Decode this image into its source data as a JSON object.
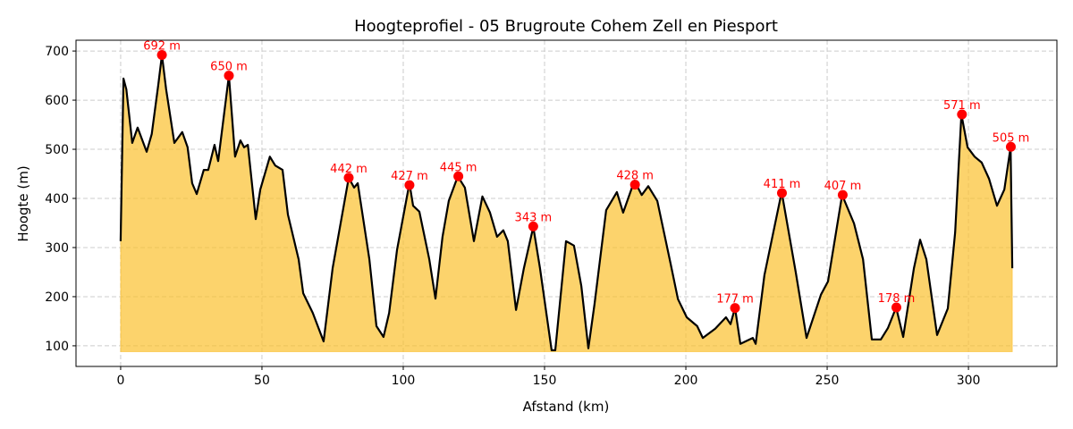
{
  "chart_data": {
    "type": "area",
    "title": "Hoogteprofiel - 05 Brugroute Cohem Zell en Piesport",
    "xlabel": "Afstand (km)",
    "ylabel": "Hoogte (m)",
    "xlim": [
      -15.8,
      331.3
    ],
    "ylim": [
      58,
      722
    ],
    "fill_baseline": 88,
    "xticks": [
      0,
      50,
      100,
      150,
      200,
      250,
      300
    ],
    "yticks": [
      100,
      200,
      300,
      400,
      500,
      600,
      700
    ],
    "grid": true,
    "colors": {
      "fill": "#fbc02d",
      "line": "#000000",
      "marker": "#ff0000",
      "label": "#ff0000",
      "grid": "#cccccc"
    },
    "x": [
      0,
      1,
      2,
      4.1,
      6,
      9.2,
      11,
      13.3,
      14.6,
      16.1,
      19,
      21.8,
      23.7,
      25.3,
      26.9,
      29.4,
      31,
      33.2,
      34.5,
      38.3,
      40.5,
      42.4,
      43.7,
      45,
      47.8,
      49.4,
      52.8,
      54.7,
      57.3,
      59.2,
      63,
      64.6,
      68,
      71.8,
      75,
      80.7,
      82.6,
      83.9,
      88,
      90.5,
      93,
      95,
      97.8,
      102.2,
      103.5,
      105.7,
      109.2,
      111.4,
      113.9,
      116.1,
      119.3,
      121.8,
      125,
      128,
      130.7,
      133.2,
      135.4,
      137,
      139.9,
      142.7,
      146,
      148.4,
      152.5,
      153.8,
      157.6,
      160.4,
      163,
      165.5,
      167.7,
      171.8,
      175.6,
      177.8,
      181.8,
      184.4,
      186.7,
      189.9,
      194.6,
      197.2,
      200.3,
      204,
      206,
      210.4,
      214.2,
      215.8,
      217.4,
      219.3,
      223.7,
      224.7,
      227.8,
      233.9,
      238.9,
      242.7,
      247.8,
      250.3,
      255.3,
      259.5,
      262.7,
      265.8,
      269,
      271.5,
      274.4,
      276.9,
      280.7,
      282.9,
      285.1,
      288.9,
      292.7,
      295.3,
      297.5,
      299.7,
      302.2,
      304.7,
      307.3,
      310.1,
      312.7,
      314.9,
      315.5
    ],
    "y": [
      313,
      644,
      622,
      513,
      544,
      495,
      531,
      631,
      692,
      622,
      513,
      535,
      504,
      431,
      409,
      458,
      458,
      509,
      476,
      650,
      485,
      518,
      504,
      509,
      358,
      418,
      485,
      467,
      458,
      367,
      276,
      207,
      167,
      109,
      258,
      442,
      422,
      431,
      276,
      140,
      118,
      167,
      295,
      431,
      385,
      373,
      276,
      196,
      322,
      395,
      445,
      422,
      313,
      404,
      371,
      322,
      335,
      313,
      173,
      258,
      342,
      258,
      91,
      91,
      313,
      304,
      222,
      95,
      185,
      376,
      413,
      371,
      436,
      407,
      425,
      395,
      267,
      195,
      158,
      140,
      116,
      135,
      158,
      144,
      177,
      104,
      116,
      104,
      244,
      413,
      249,
      116,
      204,
      231,
      407,
      349,
      276,
      113,
      113,
      136,
      178,
      118,
      258,
      316,
      276,
      122,
      176,
      331,
      571,
      504,
      485,
      473,
      440,
      385,
      418,
      504,
      258
    ],
    "peaks": [
      {
        "x": 14.6,
        "y": 692,
        "label": "692 m"
      },
      {
        "x": 38.3,
        "y": 650,
        "label": "650 m"
      },
      {
        "x": 80.7,
        "y": 442,
        "label": "442 m"
      },
      {
        "x": 102.2,
        "y": 427,
        "label": "427 m"
      },
      {
        "x": 119.5,
        "y": 445,
        "label": "445 m"
      },
      {
        "x": 146,
        "y": 343,
        "label": "343 m"
      },
      {
        "x": 182,
        "y": 428,
        "label": "428 m"
      },
      {
        "x": 217.4,
        "y": 177,
        "label": "177 m"
      },
      {
        "x": 234,
        "y": 411,
        "label": "411 m"
      },
      {
        "x": 255.5,
        "y": 407,
        "label": "407 m"
      },
      {
        "x": 274.5,
        "y": 178,
        "label": "178 m"
      },
      {
        "x": 297.7,
        "y": 571,
        "label": "571 m"
      },
      {
        "x": 315,
        "y": 505,
        "label": "505 m"
      }
    ]
  }
}
